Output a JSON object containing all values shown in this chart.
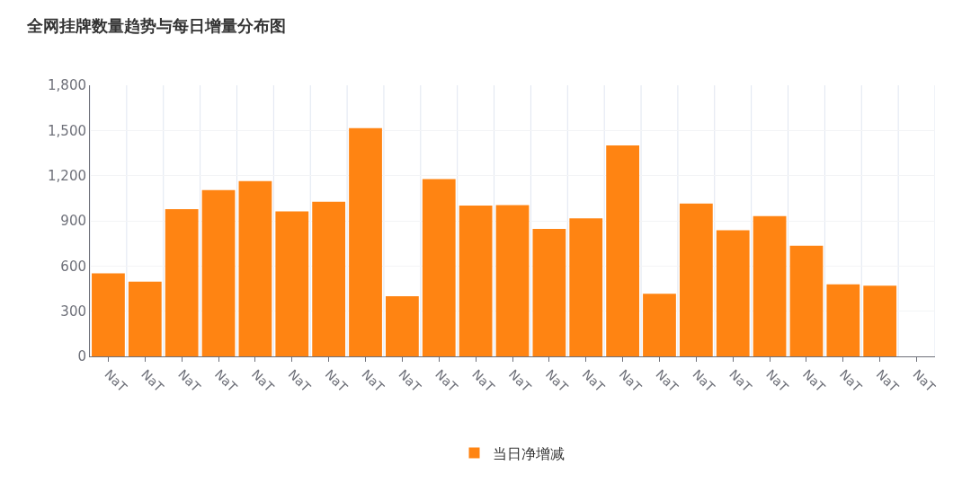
{
  "chart_data": {
    "type": "bar",
    "title": "全网挂牌数量趋势与每日增量分布图",
    "categories": [
      "NaT",
      "NaT",
      "NaT",
      "NaT",
      "NaT",
      "NaT",
      "NaT",
      "NaT",
      "NaT",
      "NaT",
      "NaT",
      "NaT",
      "NaT",
      "NaT",
      "NaT",
      "NaT",
      "NaT",
      "NaT",
      "NaT",
      "NaT",
      "NaT",
      "NaT",
      "NaT"
    ],
    "series": [
      {
        "name": "当日净增减",
        "color": "#ff8412",
        "values": [
          551,
          496,
          977,
          1104,
          1163,
          963,
          1027,
          1516,
          400,
          1177,
          1001,
          1005,
          847,
          917,
          1401,
          415,
          1014,
          837,
          931,
          734,
          478,
          470,
          0
        ]
      }
    ],
    "ylim": [
      0,
      1800
    ],
    "yticks": [
      {
        "value": 0,
        "label": "0"
      },
      {
        "value": 300,
        "label": "300"
      },
      {
        "value": 600,
        "label": "600"
      },
      {
        "value": 900,
        "label": "900"
      },
      {
        "value": 1200,
        "label": "1,200"
      },
      {
        "value": 1500,
        "label": "1,500"
      },
      {
        "value": 1800,
        "label": "1,800"
      }
    ],
    "grid": true,
    "legend": "bottom"
  }
}
